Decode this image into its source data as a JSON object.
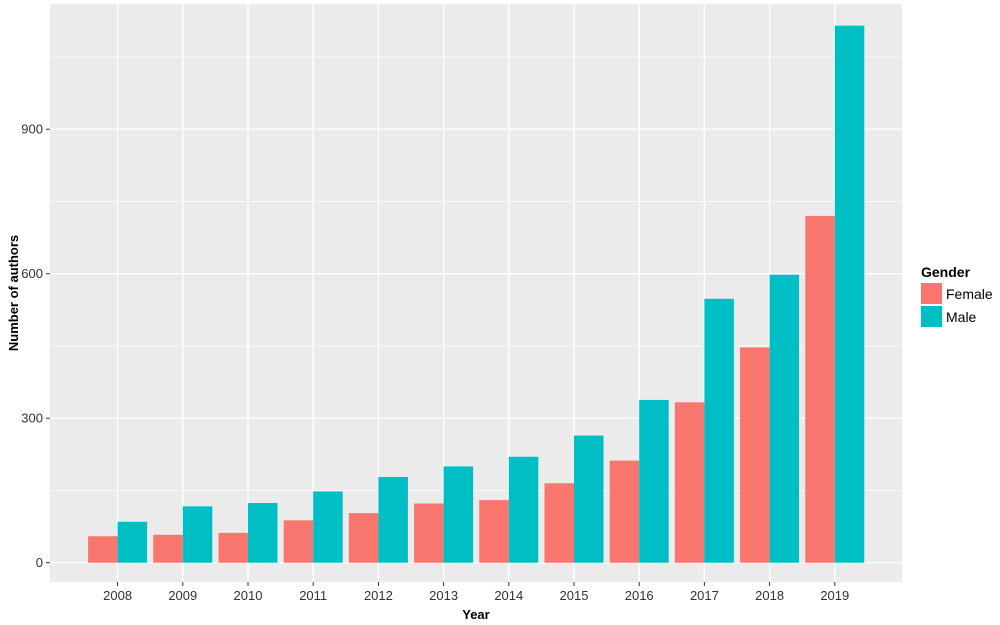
{
  "chart_data": {
    "type": "bar",
    "title": "",
    "xlabel": "Year",
    "ylabel": "Number of authors",
    "categories": [
      "2008",
      "2009",
      "2010",
      "2011",
      "2012",
      "2013",
      "2014",
      "2015",
      "2016",
      "2017",
      "2018",
      "2019"
    ],
    "series": [
      {
        "name": "Female",
        "color": "#F8766D",
        "values": [
          55,
          58,
          62,
          88,
          103,
          123,
          130,
          165,
          212,
          333,
          447,
          720
        ]
      },
      {
        "name": "Male",
        "color": "#00BFC4",
        "values": [
          85,
          117,
          124,
          148,
          178,
          200,
          220,
          264,
          338,
          548,
          598,
          1115
        ]
      }
    ],
    "ylim": [
      -40,
      1160
    ],
    "yticks": [
      0,
      300,
      600,
      900
    ],
    "legend": {
      "title": "Gender",
      "position": "right"
    },
    "grid": true,
    "panel_background": "#EBEBEB",
    "grid_color": "#FFFFFF"
  }
}
